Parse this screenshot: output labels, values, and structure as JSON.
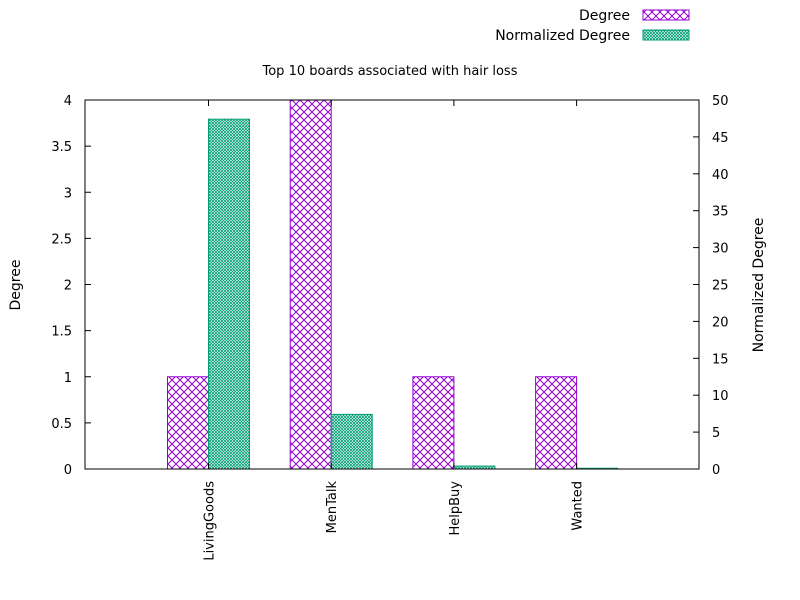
{
  "chart_data": {
    "type": "bar",
    "title": "Top 10 boards associated with hair loss",
    "categories": [
      "LivingGoods",
      "MenTalk",
      "HelpBuy",
      "Wanted"
    ],
    "series": [
      {
        "name": "Degree",
        "axis": "left",
        "color": "#9400d3",
        "pattern": "crosshatch",
        "values": [
          1,
          4,
          1,
          1
        ]
      },
      {
        "name": "Normalized Degree",
        "axis": "right",
        "color": "#009e73",
        "pattern": "fine-mesh",
        "values": [
          47.4,
          7.4,
          0.4,
          0.1
        ]
      }
    ],
    "ylabel": "Degree",
    "y2label": "Normalized Degree",
    "ylim": [
      0,
      4
    ],
    "y2lim": [
      0,
      50
    ],
    "yticks": [
      "0",
      "0.5",
      "1",
      "1.5",
      "2",
      "2.5",
      "3",
      "3.5",
      "4"
    ],
    "y2ticks": [
      "0",
      "5",
      "10",
      "15",
      "20",
      "25",
      "30",
      "35",
      "40",
      "45",
      "50"
    ],
    "grid": false,
    "legend_position": "top-right"
  }
}
